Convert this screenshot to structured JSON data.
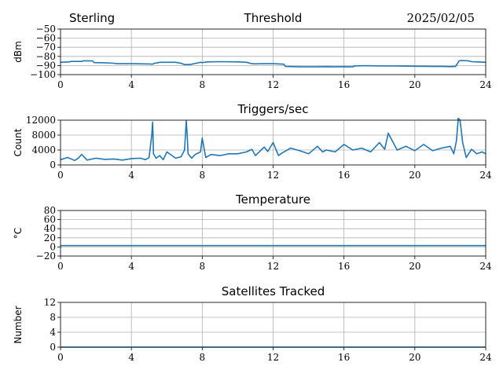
{
  "header": {
    "site": "Sterling",
    "date": "2025/02/05"
  },
  "colors": {
    "series": "#1f77b4",
    "grid": "#b0b0b0",
    "axis": "#000000"
  },
  "chart_data": [
    {
      "id": "threshold",
      "type": "line",
      "title": "Threshold",
      "xlabel": "",
      "ylabel": "dBm",
      "xlim": [
        0,
        24
      ],
      "ylim": [
        -100,
        -50
      ],
      "xticks": [
        "0",
        "4",
        "8",
        "12",
        "16",
        "20",
        "24"
      ],
      "yticks": [
        "−100",
        "−90",
        "−80",
        "−70",
        "−60",
        "−50"
      ],
      "ytick_values": [
        -100,
        -90,
        -80,
        -70,
        -60,
        -50
      ],
      "grid": true,
      "series": [
        {
          "x": [
            0,
            0.5,
            0.6,
            1.2,
            1.3,
            1.8,
            1.9,
            2.5,
            3.0,
            3.2,
            4.0,
            5.0,
            5.2,
            5.3,
            5.5,
            5.6,
            6.5,
            6.8,
            7.0,
            7.3,
            7.8,
            7.9,
            8.0,
            8.3,
            9.0,
            10.0,
            10.5,
            10.8,
            11.0,
            11.5,
            12.0,
            12.6,
            12.7,
            13.5,
            14.5,
            15.0,
            15.5,
            16.0,
            16.5,
            16.6,
            17.0,
            17.5,
            18.0,
            19.0,
            20.0,
            21.0,
            21.5,
            22.0,
            22.3,
            22.5,
            22.6,
            23.0,
            23.2,
            23.5,
            24.0
          ],
          "y": [
            -86.5,
            -86.0,
            -85.5,
            -85.5,
            -84.8,
            -85.0,
            -86.8,
            -87.0,
            -87.5,
            -88.0,
            -88.0,
            -88.3,
            -88.5,
            -87.5,
            -87.0,
            -86.5,
            -86.5,
            -87.5,
            -89.0,
            -89.0,
            -87.0,
            -86.5,
            -86.8,
            -86.0,
            -85.8,
            -86.0,
            -86.5,
            -88.0,
            -88.2,
            -88.0,
            -88.0,
            -88.5,
            -91.0,
            -91.5,
            -91.5,
            -91.3,
            -91.5,
            -91.3,
            -91.5,
            -90.5,
            -90.3,
            -90.3,
            -90.5,
            -90.5,
            -90.8,
            -91.0,
            -91.0,
            -91.2,
            -91.0,
            -85.0,
            -84.5,
            -84.8,
            -85.8,
            -86.0,
            -86.5
          ]
        }
      ]
    },
    {
      "id": "triggers",
      "type": "line",
      "title": "Triggers/sec",
      "xlabel": "",
      "ylabel": "Count",
      "xlim": [
        0,
        24
      ],
      "ylim": [
        0,
        12000
      ],
      "xticks": [
        "0",
        "4",
        "8",
        "12",
        "16",
        "20",
        "24"
      ],
      "yticks": [
        "0",
        "4000",
        "8000",
        "12000"
      ],
      "ytick_values": [
        0,
        4000,
        8000,
        12000
      ],
      "grid": true,
      "series": [
        {
          "x": [
            0,
            0.4,
            0.8,
            1.0,
            1.2,
            1.5,
            2.0,
            2.5,
            3.0,
            3.5,
            4.0,
            4.5,
            4.8,
            5.0,
            5.15,
            5.2,
            5.25,
            5.4,
            5.6,
            5.8,
            6.0,
            6.5,
            6.8,
            7.0,
            7.1,
            7.15,
            7.2,
            7.4,
            7.6,
            7.9,
            8.0,
            8.2,
            8.5,
            9.0,
            9.5,
            10.0,
            10.5,
            10.8,
            11.0,
            11.5,
            11.7,
            12.0,
            12.3,
            12.5,
            13.0,
            13.5,
            14.0,
            14.5,
            14.8,
            15.0,
            15.5,
            16.0,
            16.5,
            17.0,
            17.5,
            18.0,
            18.3,
            18.5,
            19.0,
            19.5,
            20.0,
            20.5,
            21.0,
            21.5,
            22.0,
            22.2,
            22.35,
            22.45,
            22.55,
            22.7,
            22.9,
            23.2,
            23.5,
            23.8,
            24.0
          ],
          "y": [
            1400,
            2000,
            1200,
            1800,
            2800,
            1300,
            1800,
            1500,
            1600,
            1300,
            1700,
            1800,
            1400,
            2000,
            8000,
            11500,
            3000,
            1800,
            2500,
            1400,
            3500,
            1800,
            2200,
            4000,
            11800,
            8000,
            3000,
            1800,
            2800,
            3500,
            7200,
            2000,
            2800,
            2500,
            3000,
            3000,
            3500,
            4200,
            2500,
            4800,
            3600,
            6000,
            2500,
            3200,
            4500,
            3800,
            3000,
            5000,
            3500,
            4000,
            3500,
            5500,
            4000,
            4500,
            3500,
            6000,
            4200,
            8500,
            4000,
            5000,
            3800,
            5500,
            3800,
            4500,
            5000,
            3000,
            6500,
            12500,
            12000,
            6000,
            2000,
            4200,
            3000,
            3500,
            3000
          ]
        }
      ]
    },
    {
      "id": "temperature",
      "type": "line",
      "title": "Temperature",
      "xlabel": "",
      "ylabel": "°C",
      "xlim": [
        0,
        24
      ],
      "ylim": [
        -20,
        80
      ],
      "xticks": [
        "0",
        "4",
        "8",
        "12",
        "16",
        "20",
        "24"
      ],
      "yticks": [
        "−20",
        "0",
        "20",
        "40",
        "60",
        "80"
      ],
      "ytick_values": [
        -20,
        0,
        20,
        40,
        60,
        80
      ],
      "grid": true,
      "series": [
        {
          "x": [
            0,
            24
          ],
          "y": [
            3,
            3
          ]
        }
      ]
    },
    {
      "id": "satellites",
      "type": "line",
      "title": "Satellites Tracked",
      "xlabel": "",
      "ylabel": "Number",
      "xlim": [
        0,
        24
      ],
      "ylim": [
        0,
        12
      ],
      "xticks": [
        "0",
        "4",
        "8",
        "12",
        "16",
        "20",
        "24"
      ],
      "yticks": [
        "0",
        "4",
        "8",
        "12"
      ],
      "ytick_values": [
        0,
        4,
        8,
        12
      ],
      "grid": true,
      "series": [
        {
          "x": [
            0,
            24
          ],
          "y": [
            0,
            0
          ]
        }
      ]
    }
  ]
}
